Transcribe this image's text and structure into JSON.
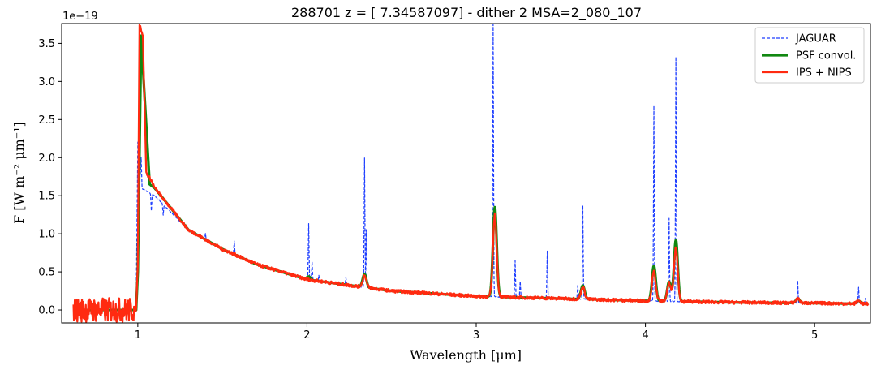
{
  "chart_data": {
    "type": "line",
    "title": "288701 z = [ 7.34587097] - dither 2 MSA=2_080_107",
    "xlabel": "Wavelength [μm]",
    "ylabel": "F [W m⁻² μm⁻¹]",
    "y_multiplier": "1e−19",
    "xlim": [
      0.55,
      5.33
    ],
    "ylim": [
      -0.17,
      3.76
    ],
    "x_ticks": [
      1,
      2,
      3,
      4,
      5
    ],
    "y_ticks": [
      0.0,
      0.5,
      1.0,
      1.5,
      2.0,
      2.5,
      3.0,
      3.5
    ],
    "x_tick_labels": [
      "1",
      "2",
      "3",
      "4",
      "5"
    ],
    "y_tick_labels": [
      "0.0",
      "0.5",
      "1.0",
      "1.5",
      "2.0",
      "2.5",
      "3.0",
      "3.5"
    ],
    "grid": false,
    "legend": {
      "placement": "top-right"
    },
    "series": [
      {
        "name": "JAGUAR",
        "color": "#1f3fff",
        "style": "dashed",
        "continuum": [
          [
            0.62,
            0.0
          ],
          [
            0.99,
            0.0
          ],
          [
            1.0,
            2.2
          ],
          [
            1.02,
            1.6
          ],
          [
            1.1,
            1.5
          ],
          [
            1.3,
            1.05
          ],
          [
            1.5,
            0.8
          ],
          [
            1.7,
            0.6
          ],
          [
            2.0,
            0.4
          ],
          [
            2.5,
            0.25
          ],
          [
            3.0,
            0.18
          ],
          [
            3.5,
            0.15
          ],
          [
            4.0,
            0.12
          ],
          [
            4.5,
            0.1
          ],
          [
            5.0,
            0.09
          ],
          [
            5.3,
            0.08
          ]
        ],
        "lines": [
          [
            1.02,
            2.0
          ],
          [
            1.08,
            1.3
          ],
          [
            1.15,
            1.25
          ],
          [
            1.4,
            1.0
          ],
          [
            1.57,
            0.9
          ],
          [
            2.01,
            1.13
          ],
          [
            2.03,
            0.63
          ],
          [
            2.07,
            0.45
          ],
          [
            2.23,
            0.42
          ],
          [
            2.34,
            2.0
          ],
          [
            2.35,
            1.05
          ],
          [
            3.1,
            3.75
          ],
          [
            3.23,
            0.65
          ],
          [
            3.26,
            0.38
          ],
          [
            3.42,
            0.78
          ],
          [
            3.6,
            0.32
          ],
          [
            3.63,
            1.37
          ],
          [
            4.05,
            2.68
          ],
          [
            4.14,
            1.2
          ],
          [
            4.18,
            3.32
          ],
          [
            4.9,
            0.38
          ],
          [
            5.26,
            0.3
          ],
          [
            5.3,
            0.15
          ]
        ]
      },
      {
        "name": "PSF convol.",
        "color": "#118811",
        "style": "solid",
        "continuum": [
          [
            0.62,
            0.0
          ],
          [
            0.99,
            0.0
          ],
          [
            1.0,
            0.5
          ],
          [
            1.02,
            3.6
          ],
          [
            1.04,
            2.8
          ],
          [
            1.07,
            1.65
          ],
          [
            1.1,
            1.6
          ],
          [
            1.3,
            1.05
          ],
          [
            1.5,
            0.8
          ],
          [
            1.7,
            0.6
          ],
          [
            2.0,
            0.4
          ],
          [
            2.5,
            0.25
          ],
          [
            3.0,
            0.18
          ],
          [
            3.5,
            0.15
          ],
          [
            4.0,
            0.12
          ],
          [
            4.5,
            0.1
          ],
          [
            5.0,
            0.09
          ],
          [
            5.3,
            0.08
          ]
        ],
        "lines": [
          [
            2.01,
            0.44
          ],
          [
            2.34,
            0.47
          ],
          [
            3.11,
            1.35
          ],
          [
            3.63,
            0.32
          ],
          [
            4.05,
            0.58
          ],
          [
            4.14,
            0.37
          ],
          [
            4.18,
            0.92
          ],
          [
            4.9,
            0.15
          ],
          [
            5.26,
            0.12
          ]
        ]
      },
      {
        "name": "IPS + NIPS",
        "color": "#ff2a10",
        "style": "solid",
        "continuum": [
          [
            0.62,
            0.0
          ],
          [
            0.99,
            0.0
          ],
          [
            1.0,
            0.6
          ],
          [
            1.01,
            3.76
          ],
          [
            1.03,
            3.6
          ],
          [
            1.05,
            1.8
          ],
          [
            1.08,
            1.7
          ],
          [
            1.1,
            1.6
          ],
          [
            1.3,
            1.05
          ],
          [
            1.5,
            0.8
          ],
          [
            1.7,
            0.6
          ],
          [
            2.0,
            0.4
          ],
          [
            2.5,
            0.25
          ],
          [
            3.0,
            0.18
          ],
          [
            3.5,
            0.15
          ],
          [
            4.0,
            0.12
          ],
          [
            4.5,
            0.1
          ],
          [
            5.0,
            0.09
          ],
          [
            5.3,
            0.08
          ]
        ],
        "lines": [
          [
            2.34,
            0.45
          ],
          [
            3.11,
            1.25
          ],
          [
            3.63,
            0.3
          ],
          [
            4.05,
            0.5
          ],
          [
            4.14,
            0.35
          ],
          [
            4.18,
            0.82
          ],
          [
            4.9,
            0.15
          ],
          [
            5.26,
            0.12
          ]
        ]
      }
    ]
  }
}
